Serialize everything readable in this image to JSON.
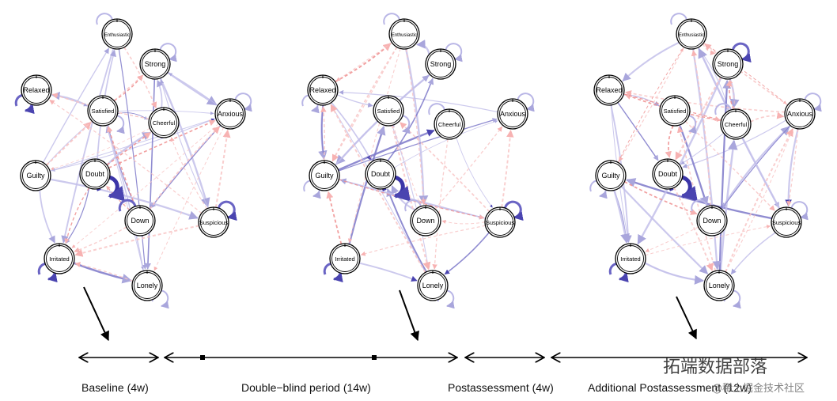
{
  "networks": [
    {
      "id": "baseline",
      "nodes": [
        {
          "name": "Enthusiastic",
          "self": "weak"
        },
        {
          "name": "Strong",
          "self": "weak"
        },
        {
          "name": "Relaxed",
          "self": "strong"
        },
        {
          "name": "Satisfied",
          "self": "weak"
        },
        {
          "name": "Cheerful",
          "self": "none"
        },
        {
          "name": "Anxious",
          "self": "weak"
        },
        {
          "name": "Guilty",
          "self": "none"
        },
        {
          "name": "Doubt",
          "self": "heavy"
        },
        {
          "name": "Down",
          "self": "strong"
        },
        {
          "name": "Suspicious",
          "self": "strong"
        },
        {
          "name": "Irritated",
          "self": "strong"
        },
        {
          "name": "Lonely",
          "self": "weak"
        }
      ]
    },
    {
      "id": "double-blind",
      "nodes": [
        {
          "name": "Enthusiastic",
          "self": "weak"
        },
        {
          "name": "Strong",
          "self": "weak"
        },
        {
          "name": "Relaxed",
          "self": "weak"
        },
        {
          "name": "Satisfied",
          "self": "weak"
        },
        {
          "name": "Cheerful",
          "self": "weak"
        },
        {
          "name": "Anxious",
          "self": "weak"
        },
        {
          "name": "Guilty",
          "self": "weak"
        },
        {
          "name": "Doubt",
          "self": "heavy"
        },
        {
          "name": "Down",
          "self": "weak"
        },
        {
          "name": "Suspicious",
          "self": "strong"
        },
        {
          "name": "Irritated",
          "self": "strong"
        },
        {
          "name": "Lonely",
          "self": "weak"
        }
      ]
    },
    {
      "id": "additional-postassessment",
      "nodes": [
        {
          "name": "Enthusiastic",
          "self": "weak"
        },
        {
          "name": "Strong",
          "self": "strong"
        },
        {
          "name": "Relaxed",
          "self": "none"
        },
        {
          "name": "Satisfied",
          "self": "weak"
        },
        {
          "name": "Cheerful",
          "self": "weak"
        },
        {
          "name": "Anxious",
          "self": "weak"
        },
        {
          "name": "Guilty",
          "self": "weak"
        },
        {
          "name": "Doubt",
          "self": "heavy"
        },
        {
          "name": "Down",
          "self": "weak"
        },
        {
          "name": "Suspicious",
          "self": "weak"
        },
        {
          "name": "Irritated",
          "self": "strong"
        },
        {
          "name": "Lonely",
          "self": "weak"
        }
      ]
    }
  ],
  "timeline": {
    "phases": [
      {
        "label": "Baseline (4w)"
      },
      {
        "label": "Double−blind period (14w)"
      },
      {
        "label": "Postassessment (4w)"
      },
      {
        "label": "Additional Postassessment (12w)"
      }
    ]
  },
  "watermark": {
    "text": "拓端数据部落",
    "subtext": "@稀土掘金技术社区"
  },
  "colors": {
    "positive_edge": "#5b55b8",
    "negative_edge": "#f08a8a",
    "self_loop_strong": "#3b35a8",
    "node_stroke": "#000000"
  }
}
